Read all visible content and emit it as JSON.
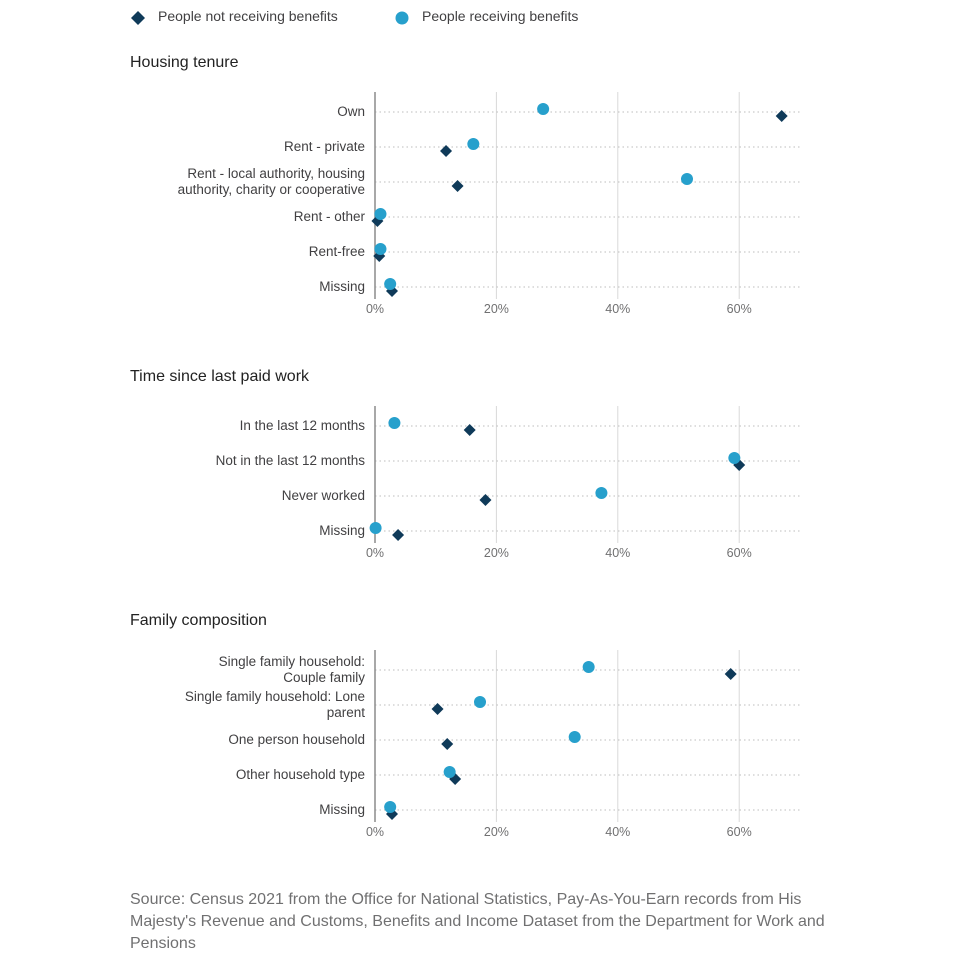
{
  "legend": {
    "not_receiving": "People not receiving benefits",
    "receiving": "People receiving benefits"
  },
  "colors": {
    "not_receiving": "#0f3a59",
    "receiving": "#27a0cc",
    "grid": "#d9d9d9",
    "axis": "#8c8c8c"
  },
  "source": "Source: Census 2021 from the Office for National Statistics, Pay-As-You-Earn records from His Majesty's Revenue and Customs, Benefits and Income Dataset from the Department for Work and Pensions",
  "chart_data": [
    {
      "type": "scatter",
      "title": "Housing tenure",
      "categories": [
        [
          "Own"
        ],
        [
          "Rent - private"
        ],
        [
          "Rent - local authority, housing",
          "authority, charity or cooperative"
        ],
        [
          "Rent - other"
        ],
        [
          "Rent-free"
        ],
        [
          "Missing"
        ]
      ],
      "series": [
        {
          "name": "People not receiving benefits",
          "values": [
            67,
            11.7,
            13.6,
            0.4,
            0.7,
            2.8
          ]
        },
        {
          "name": "People receiving benefits",
          "values": [
            27.7,
            16.2,
            51.4,
            0.9,
            0.9,
            2.5
          ]
        }
      ],
      "xlim": [
        0,
        70
      ],
      "xticks": [
        "0%",
        "20%",
        "40%",
        "60%"
      ],
      "grid": true
    },
    {
      "type": "scatter",
      "title": "Time since last paid work",
      "categories": [
        [
          "In the last 12 months"
        ],
        [
          "Not in the last 12 months"
        ],
        [
          "Never worked"
        ],
        [
          "Missing"
        ]
      ],
      "series": [
        {
          "name": "People not receiving benefits",
          "values": [
            15.6,
            60,
            18.2,
            3.8
          ]
        },
        {
          "name": "People receiving benefits",
          "values": [
            3.2,
            59.2,
            37.3,
            0.1
          ]
        }
      ],
      "xlim": [
        0,
        70
      ],
      "xticks": [
        "0%",
        "20%",
        "40%",
        "60%"
      ],
      "grid": true
    },
    {
      "type": "scatter",
      "title": "Family composition",
      "categories": [
        [
          "Single family household:",
          "Couple family"
        ],
        [
          "Single family household: Lone",
          "parent"
        ],
        [
          "One person household"
        ],
        [
          "Other household type"
        ],
        [
          "Missing"
        ]
      ],
      "series": [
        {
          "name": "People not receiving benefits",
          "values": [
            58.6,
            10.3,
            11.9,
            13.2,
            2.8
          ]
        },
        {
          "name": "People receiving benefits",
          "values": [
            35.2,
            17.3,
            32.9,
            12.3,
            2.5
          ]
        }
      ],
      "xlim": [
        0,
        70
      ],
      "xticks": [
        "0%",
        "20%",
        "40%",
        "60%"
      ],
      "grid": true
    }
  ]
}
